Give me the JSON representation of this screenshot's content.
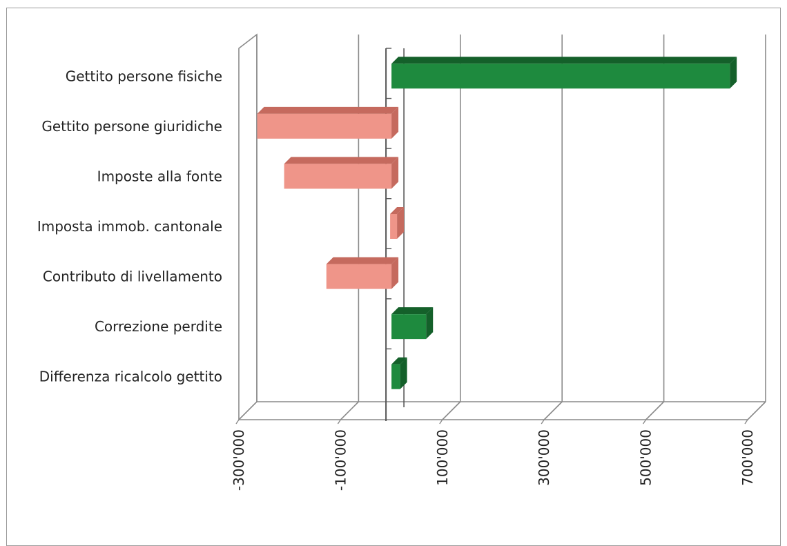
{
  "chart_data": {
    "type": "bar",
    "orientation": "horizontal",
    "style": "3d",
    "categories": [
      "Gettito persone fisiche",
      "Gettito persone giuridiche",
      "Imposte alla fonte",
      "Imposta immob. cantonale",
      "Contributo di livellamento",
      "Correzione perdite",
      "Differenza ricalcolo gettito"
    ],
    "values": [
      665000,
      -264000,
      -211000,
      -3000,
      -128000,
      68000,
      17000
    ],
    "xlim": [
      -300000,
      700000
    ],
    "xticks": [
      -300000,
      -100000,
      100000,
      300000,
      500000,
      700000
    ],
    "xtick_labels": [
      "-300'000",
      "-100'000",
      "100'000",
      "300'000",
      "500'000",
      "700'000"
    ],
    "grid": true,
    "legend": "none",
    "title": "",
    "xlabel": "",
    "ylabel": "",
    "colors": {
      "positive": "#1e8a3e",
      "positive_dark": "#14602a",
      "negative": "#ef9589",
      "negative_dark": "#c56a5e",
      "grid": "#8a8a8a",
      "wall": "#555555"
    }
  }
}
